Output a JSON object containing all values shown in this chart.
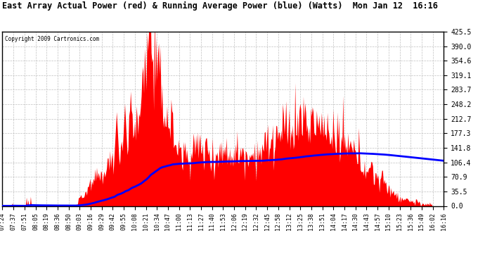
{
  "title": "East Array Actual Power (red) & Running Average Power (blue) (Watts)  Mon Jan 12  16:16",
  "copyright_text": "Copyright 2009 Cartronics.com",
  "background_color": "#ffffff",
  "plot_bg_color": "#ffffff",
  "grid_color": "#c0c0c0",
  "actual_color": "red",
  "average_color": "blue",
  "ylim": [
    0,
    425.5
  ],
  "yticks": [
    0.0,
    35.5,
    70.9,
    106.4,
    141.8,
    177.3,
    212.7,
    248.2,
    283.7,
    319.1,
    354.6,
    390.0,
    425.5
  ],
  "x_labels": [
    "07:24",
    "07:37",
    "07:51",
    "08:05",
    "08:19",
    "08:36",
    "08:50",
    "09:03",
    "09:16",
    "09:29",
    "09:42",
    "09:55",
    "10:08",
    "10:21",
    "10:34",
    "10:47",
    "11:00",
    "11:13",
    "11:27",
    "11:40",
    "11:53",
    "12:06",
    "12:19",
    "12:32",
    "12:45",
    "12:58",
    "13:12",
    "13:25",
    "13:38",
    "13:51",
    "14:04",
    "14:17",
    "14:30",
    "14:43",
    "14:57",
    "15:10",
    "15:23",
    "15:36",
    "15:49",
    "16:02",
    "16:16"
  ],
  "n_points": 535
}
